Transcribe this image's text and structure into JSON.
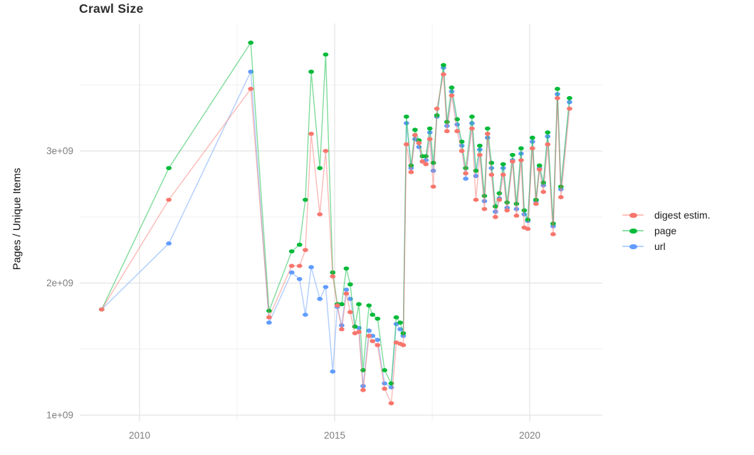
{
  "chart_data": {
    "type": "line",
    "title": "Crawl Size",
    "ylabel": "Pages / Unique Items",
    "xlabel": "",
    "values_unit": "items, shown in units of 1e9 (billions)",
    "grid": true,
    "legend_position": "right",
    "x_axis": {
      "tick_labels": [
        "2010",
        "2015",
        "2020"
      ],
      "tick_values": [
        2010,
        2015,
        2020
      ],
      "minor_ticks": [
        2012.5,
        2017.5
      ],
      "range": [
        2008.5,
        2021.85
      ]
    },
    "y_axis": {
      "tick_labels": [
        "1e+09",
        "2e+09",
        "3e+09"
      ],
      "tick_values": [
        1,
        2,
        3
      ],
      "minor_ticks": [
        1.5,
        2.5,
        3.5
      ],
      "range": [
        0.92,
        3.97
      ]
    },
    "x": [
      2009.03,
      2010.75,
      2012.85,
      2013.32,
      2013.9,
      2014.1,
      2014.25,
      2014.4,
      2014.62,
      2014.77,
      2014.95,
      2015.07,
      2015.18,
      2015.3,
      2015.4,
      2015.52,
      2015.62,
      2015.73,
      2015.88,
      2015.97,
      2016.1,
      2016.28,
      2016.45,
      2016.58,
      2016.68,
      2016.76,
      2016.84,
      2016.96,
      2017.06,
      2017.16,
      2017.25,
      2017.34,
      2017.44,
      2017.53,
      2017.62,
      2017.79,
      2017.88,
      2018.0,
      2018.14,
      2018.26,
      2018.36,
      2018.52,
      2018.62,
      2018.72,
      2018.84,
      2018.92,
      2019.02,
      2019.12,
      2019.22,
      2019.32,
      2019.42,
      2019.56,
      2019.66,
      2019.78,
      2019.86,
      2019.95,
      2020.07,
      2020.16,
      2020.25,
      2020.35,
      2020.46,
      2020.6,
      2020.71,
      2020.8,
      2021.02
    ],
    "series": [
      {
        "name": "digest estim.",
        "color": "#F8766D",
        "values": [
          1.8,
          2.63,
          3.47,
          1.74,
          2.13,
          2.13,
          2.25,
          3.13,
          2.52,
          3.0,
          2.05,
          1.83,
          1.65,
          1.92,
          1.78,
          1.62,
          1.63,
          1.19,
          1.6,
          1.56,
          1.53,
          1.2,
          1.09,
          1.55,
          1.54,
          1.53,
          3.05,
          2.84,
          3.12,
          3.06,
          2.92,
          2.9,
          3.09,
          2.73,
          3.32,
          3.58,
          3.15,
          3.42,
          3.15,
          3.0,
          2.83,
          3.17,
          2.63,
          2.97,
          2.56,
          3.13,
          2.82,
          2.5,
          2.63,
          2.82,
          2.55,
          2.92,
          2.51,
          2.93,
          2.42,
          2.41,
          3.02,
          2.6,
          2.86,
          2.69,
          3.05,
          2.37,
          3.4,
          2.65,
          3.32
        ]
      },
      {
        "name": "page",
        "color": "#00BA38",
        "values": [
          1.8,
          2.87,
          3.82,
          1.79,
          2.24,
          2.29,
          2.63,
          3.6,
          2.87,
          3.73,
          2.08,
          1.84,
          1.84,
          2.11,
          1.99,
          1.67,
          1.84,
          1.34,
          1.83,
          1.76,
          1.73,
          1.34,
          1.24,
          1.74,
          1.7,
          1.62,
          3.26,
          2.89,
          3.16,
          3.08,
          2.96,
          2.96,
          3.17,
          2.91,
          3.27,
          3.65,
          3.22,
          3.48,
          3.24,
          3.07,
          2.87,
          3.26,
          2.85,
          3.04,
          2.66,
          3.17,
          2.91,
          2.58,
          2.68,
          2.9,
          2.61,
          2.97,
          2.6,
          3.02,
          2.55,
          2.48,
          3.1,
          2.63,
          2.89,
          2.76,
          3.14,
          2.45,
          3.47,
          2.73,
          3.4
        ]
      },
      {
        "name": "url",
        "color": "#619CFF",
        "values": [
          1.8,
          2.3,
          3.6,
          1.7,
          2.08,
          2.03,
          1.76,
          2.12,
          1.88,
          1.97,
          1.33,
          1.82,
          1.68,
          1.95,
          1.88,
          1.67,
          1.66,
          1.22,
          1.64,
          1.6,
          1.57,
          1.24,
          1.21,
          1.69,
          1.65,
          1.6,
          3.21,
          2.87,
          3.09,
          3.03,
          2.92,
          2.93,
          3.14,
          2.85,
          3.26,
          3.63,
          3.19,
          3.45,
          3.2,
          3.04,
          2.79,
          3.21,
          2.81,
          3.01,
          2.62,
          3.1,
          2.87,
          2.54,
          2.64,
          2.87,
          2.57,
          2.93,
          2.56,
          2.98,
          2.52,
          2.47,
          3.07,
          2.62,
          2.87,
          2.74,
          3.11,
          2.43,
          3.43,
          2.71,
          3.37
        ]
      }
    ]
  }
}
